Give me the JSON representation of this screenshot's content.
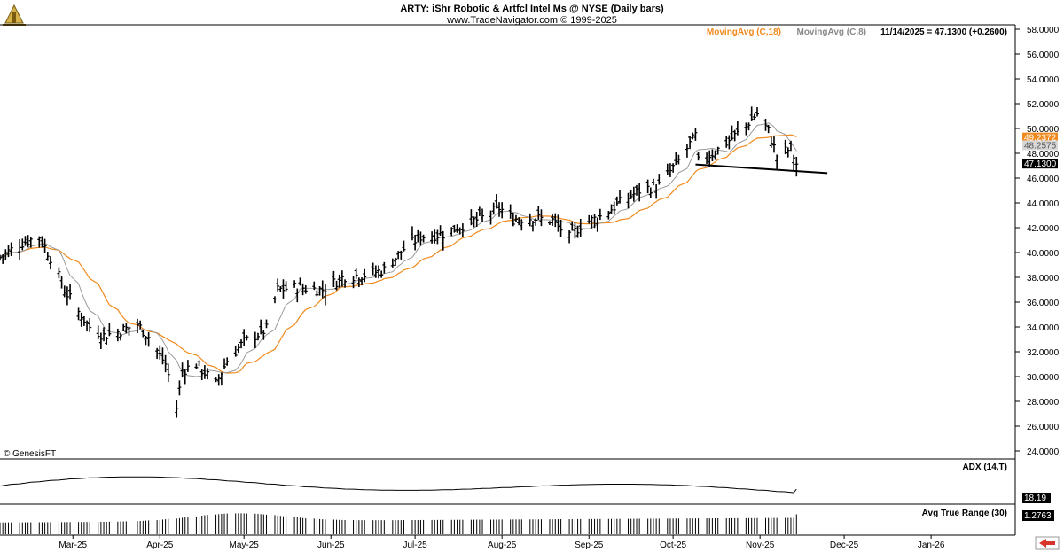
{
  "header": {
    "title": "ARTY:  iShr Robotic & Artfcl Intel Ms @ NYSE  (Daily bars)",
    "subtitle": "www.TradeNavigator.com © 1999-2025"
  },
  "legend": {
    "ma18_label": "MovingAvg (C,18)",
    "ma8_label": "MovingAvg (C,8)",
    "last_bar_label": "11/14/2025 = 47.1300 (+0.2600)"
  },
  "watermark": "© GenesisFT",
  "colors": {
    "ma18": "#f08a1e",
    "ma8": "#9a9a9a",
    "bars": "#000000",
    "nav_arrow": "#d9342b"
  },
  "price_tags": {
    "ma18": "49.2372",
    "ma8": "48.2575",
    "last": "47.1300"
  },
  "adx": {
    "label": "ADX (14,T)",
    "value": "18.19"
  },
  "atr": {
    "label": "Avg True Range (30)",
    "value": "1.2763"
  },
  "x_axis": {
    "months": [
      "Mar-25",
      "Apr-25",
      "May-25",
      "Jun-25",
      "Jul-25",
      "Aug-25",
      "Sep-25",
      "Oct-25",
      "Nov-25",
      "Dec-25",
      "Jan-26"
    ]
  },
  "chart_data": {
    "type": "ohlc",
    "title": "ARTY:  iShr Robotic & Artfcl Intel Ms @ NYSE  (Daily bars)",
    "ylim": [
      24,
      58
    ],
    "y_ticks": [
      "24.0000",
      "26.0000",
      "28.0000",
      "30.0000",
      "32.0000",
      "34.0000",
      "36.0000",
      "38.0000",
      "40.0000",
      "42.0000",
      "44.0000",
      "46.0000",
      "48.0000",
      "50.0000",
      "52.0000",
      "54.0000",
      "56.0000",
      "58.0000"
    ],
    "x_start": "2025-02-03",
    "x_end": "2026-01-31",
    "last_close": 47.13,
    "change": 0.26,
    "close_path": [
      [
        "2025-02-03",
        39.6
      ],
      [
        "2025-02-10",
        40.7
      ],
      [
        "2025-02-17",
        41.3
      ],
      [
        "2025-02-21",
        39.6
      ],
      [
        "2025-02-26",
        37.0
      ],
      [
        "2025-03-03",
        35.2
      ],
      [
        "2025-03-07",
        34.0
      ],
      [
        "2025-03-12",
        33.3
      ],
      [
        "2025-03-17",
        33.6
      ],
      [
        "2025-03-24",
        34.2
      ],
      [
        "2025-03-28",
        33.2
      ],
      [
        "2025-04-03",
        31.0
      ],
      [
        "2025-04-07",
        27.5
      ],
      [
        "2025-04-09",
        30.5
      ],
      [
        "2025-04-14",
        31.0
      ],
      [
        "2025-04-21",
        29.4
      ],
      [
        "2025-04-25",
        31.3
      ],
      [
        "2025-05-01",
        32.8
      ],
      [
        "2025-05-09",
        33.8
      ],
      [
        "2025-05-13",
        37.0
      ],
      [
        "2025-05-20",
        37.2
      ],
      [
        "2025-05-29",
        37.0
      ],
      [
        "2025-06-06",
        38.1
      ],
      [
        "2025-06-13",
        38.2
      ],
      [
        "2025-06-20",
        38.6
      ],
      [
        "2025-06-27",
        40.3
      ],
      [
        "2025-07-03",
        41.3
      ],
      [
        "2025-07-11",
        41.5
      ],
      [
        "2025-07-18",
        42.2
      ],
      [
        "2025-07-25",
        42.8
      ],
      [
        "2025-07-31",
        43.6
      ],
      [
        "2025-08-05",
        42.7
      ],
      [
        "2025-08-12",
        42.8
      ],
      [
        "2025-08-19",
        42.6
      ],
      [
        "2025-08-25",
        41.2
      ],
      [
        "2025-08-29",
        42.2
      ],
      [
        "2025-09-05",
        42.9
      ],
      [
        "2025-09-12",
        44.0
      ],
      [
        "2025-09-19",
        45.0
      ],
      [
        "2025-09-26",
        45.4
      ],
      [
        "2025-10-03",
        47.4
      ],
      [
        "2025-10-09",
        49.4
      ],
      [
        "2025-10-10",
        47.3
      ],
      [
        "2025-10-17",
        48.3
      ],
      [
        "2025-10-24",
        49.6
      ],
      [
        "2025-10-31",
        51.2
      ],
      [
        "2025-11-04",
        49.8
      ],
      [
        "2025-11-07",
        47.8
      ],
      [
        "2025-11-12",
        48.4
      ],
      [
        "2025-11-14",
        47.13
      ]
    ],
    "moving_averages": [
      {
        "name": "MovingAvg (C,18)",
        "last": 49.2372
      },
      {
        "name": "MovingAvg (C,8)",
        "last": 48.2575
      }
    ],
    "trendline": {
      "from": [
        "2025-10-09",
        47.1
      ],
      "to": [
        "2025-11-25",
        46.4
      ]
    },
    "indicators": [
      {
        "name": "ADX (14,T)",
        "last": 18.19
      },
      {
        "name": "Avg True Range (30)",
        "last": 1.2763
      }
    ]
  }
}
